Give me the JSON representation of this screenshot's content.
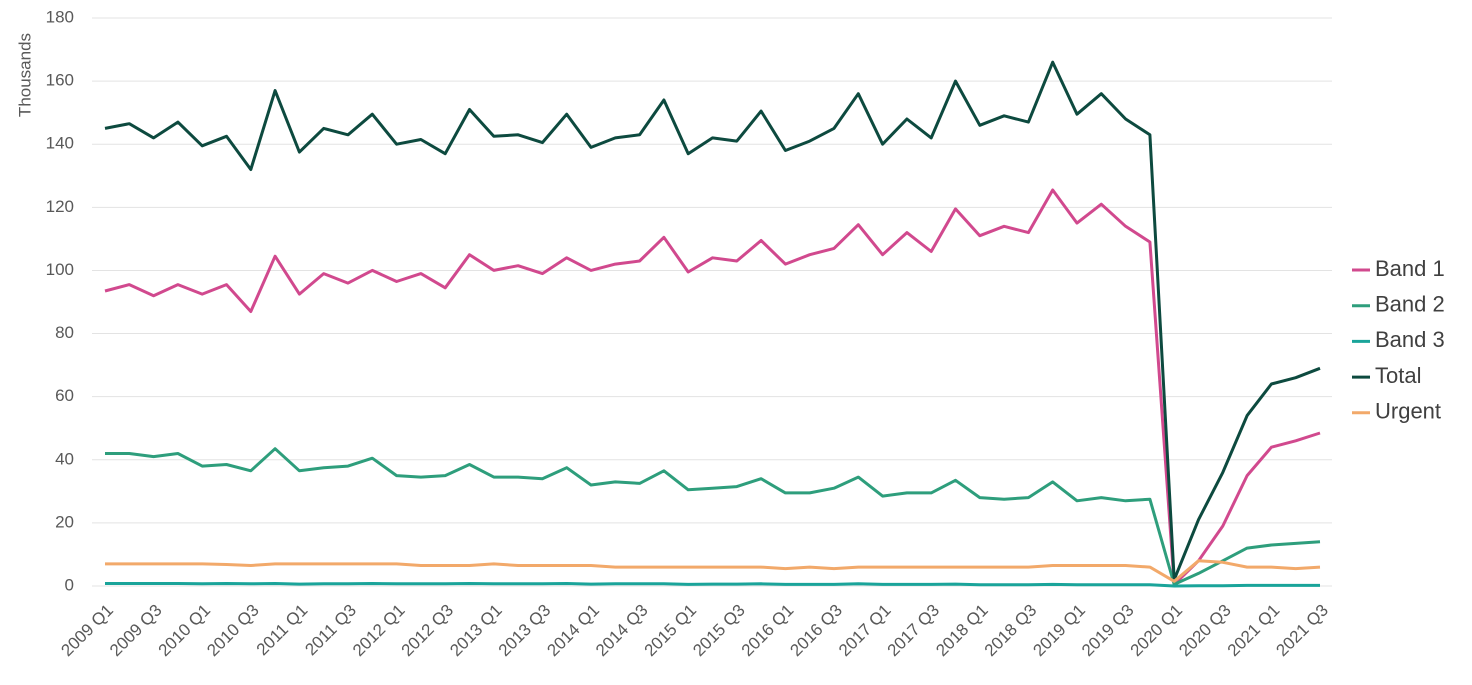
{
  "chart_data": {
    "type": "line",
    "y_label": "Thousands",
    "categories": [
      "2009 Q1",
      null,
      "2009 Q3",
      null,
      "2010 Q1",
      null,
      "2010 Q3",
      null,
      "2011 Q1",
      null,
      "2011 Q3",
      null,
      "2012 Q1",
      null,
      "2012 Q3",
      null,
      "2013 Q1",
      null,
      "2013 Q3",
      null,
      "2014 Q1",
      null,
      "2014 Q3",
      null,
      "2015 Q1",
      null,
      "2015 Q3",
      null,
      "2016 Q1",
      null,
      "2016 Q3",
      null,
      "2017 Q1",
      null,
      "2017 Q3",
      null,
      "2018 Q1",
      null,
      "2018 Q3",
      null,
      "2019 Q1",
      null,
      "2019 Q3",
      null,
      "2020 Q1",
      null,
      "2020 Q3",
      null,
      "2021 Q1",
      null,
      "2021 Q3"
    ],
    "series": [
      {
        "name": "Band 1",
        "color": "#d1498e",
        "values": [
          93.5,
          95.5,
          92,
          95.5,
          92.5,
          95.5,
          87,
          104.5,
          92.5,
          99,
          96,
          100,
          96.5,
          99,
          94.5,
          105,
          100,
          101.5,
          99,
          104,
          100,
          102,
          103,
          110.5,
          99.5,
          104,
          103,
          109.5,
          102,
          105,
          107,
          114.5,
          105,
          112,
          106,
          119.5,
          111,
          114,
          112,
          125.5,
          115,
          121,
          114,
          109,
          0.5,
          8,
          19,
          35,
          44,
          46,
          48.5
        ]
      },
      {
        "name": "Band 2",
        "color": "#2e9e7c",
        "values": [
          42,
          42,
          41,
          42,
          38,
          38.5,
          36.5,
          43.5,
          36.5,
          37.5,
          38,
          40.5,
          35,
          34.5,
          35,
          38.5,
          34.5,
          34.5,
          34,
          37.5,
          32,
          33,
          32.5,
          36.5,
          30.5,
          31,
          31.5,
          34,
          29.5,
          29.5,
          31,
          34.5,
          28.5,
          29.5,
          29.5,
          33.5,
          28,
          27.5,
          28,
          33,
          27,
          28,
          27,
          27.5,
          0.5,
          4,
          8,
          12,
          13,
          13.5,
          14
        ]
      },
      {
        "name": "Band 3",
        "color": "#1aa49a",
        "values": [
          0.8,
          0.8,
          0.8,
          0.8,
          0.7,
          0.8,
          0.7,
          0.8,
          0.6,
          0.7,
          0.7,
          0.8,
          0.7,
          0.7,
          0.7,
          0.8,
          0.7,
          0.7,
          0.7,
          0.8,
          0.6,
          0.7,
          0.7,
          0.7,
          0.5,
          0.6,
          0.6,
          0.7,
          0.5,
          0.5,
          0.5,
          0.7,
          0.5,
          0.5,
          0.5,
          0.6,
          0.4,
          0.4,
          0.4,
          0.5,
          0.4,
          0.4,
          0.4,
          0.4,
          0,
          0.1,
          0.1,
          0.2,
          0.2,
          0.2,
          0.2
        ]
      },
      {
        "name": "Total",
        "color": "#0d4a3f",
        "values": [
          145,
          146.5,
          142,
          147,
          139.5,
          142.5,
          132,
          157,
          137.5,
          145,
          143,
          149.5,
          140,
          141.5,
          137,
          151,
          142.5,
          143,
          140.5,
          149.5,
          139,
          142,
          143,
          154,
          137,
          142,
          141,
          150.5,
          138,
          141,
          145,
          156,
          140,
          148,
          142,
          160,
          146,
          149,
          147,
          166,
          149.5,
          156,
          148,
          143,
          2,
          21,
          36,
          54,
          64,
          66,
          69
        ]
      },
      {
        "name": "Urgent",
        "color": "#f2a96a",
        "values": [
          7,
          7,
          7,
          7,
          7,
          6.8,
          6.5,
          7,
          7,
          7,
          7,
          7,
          7,
          6.5,
          6.5,
          6.5,
          7,
          6.5,
          6.5,
          6.5,
          6.5,
          6,
          6,
          6,
          6,
          6,
          6,
          6,
          5.5,
          6,
          5.5,
          6,
          6,
          6,
          6,
          6,
          6,
          6,
          6,
          6.5,
          6.5,
          6.5,
          6.5,
          6,
          1.5,
          8,
          7.5,
          6,
          6,
          5.5,
          6
        ]
      }
    ],
    "ylim": [
      0,
      180
    ],
    "yticks": [
      0,
      20,
      40,
      60,
      80,
      100,
      120,
      140,
      160,
      180
    ],
    "grid": true,
    "legend": "right"
  }
}
